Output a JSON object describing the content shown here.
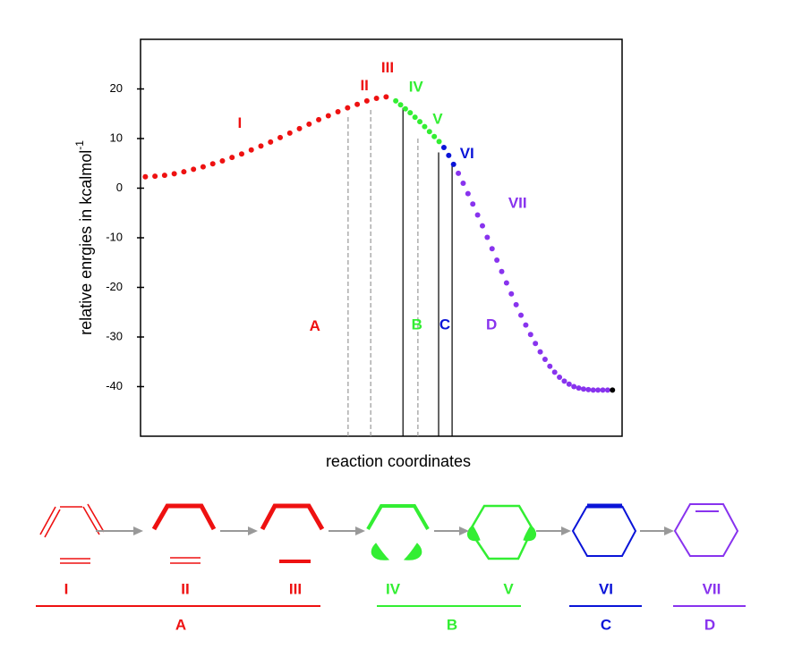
{
  "chart_data": {
    "type": "scatter",
    "xlabel": "reaction coordinates",
    "ylabel": "relative enrgies in kcalmol",
    "ylabel_sup": "-1",
    "xlim": [
      0,
      100
    ],
    "ylim": [
      -50,
      30
    ],
    "yticks": [
      20,
      10,
      0,
      -10,
      -20,
      -30,
      -40
    ],
    "series": [
      {
        "color": "#ee1111",
        "x": [
          1,
          3,
          5,
          7,
          9,
          11,
          13,
          15,
          17,
          19,
          21,
          23,
          25,
          27,
          29,
          31,
          33,
          35,
          37,
          39,
          41,
          43,
          45,
          47,
          49,
          51
        ],
        "values": [
          2.3,
          2.4,
          2.6,
          2.9,
          3.3,
          3.8,
          4.3,
          4.9,
          5.5,
          6.2,
          6.9,
          7.7,
          8.5,
          9.3,
          10.2,
          11.1,
          12.0,
          12.9,
          13.8,
          14.6,
          15.4,
          16.2,
          16.9,
          17.6,
          18.1,
          18.4
        ]
      },
      {
        "color": "#33ee33",
        "x": [
          53,
          54,
          55,
          56,
          57,
          58,
          59,
          60,
          61,
          62
        ],
        "values": [
          17.6,
          16.8,
          16.0,
          15.2,
          14.3,
          13.4,
          12.4,
          11.4,
          10.4,
          9.4
        ]
      },
      {
        "color": "#0a14d8",
        "x": [
          63,
          64,
          65
        ],
        "values": [
          8.2,
          6.6,
          4.8
        ]
      },
      {
        "color": "#8833ee",
        "x": [
          66,
          67,
          68,
          69,
          70,
          71,
          72,
          73,
          74,
          75,
          76,
          77,
          78,
          79,
          80,
          81,
          82,
          83,
          84,
          85,
          86,
          87,
          88,
          89,
          90,
          91,
          92,
          93,
          94,
          95,
          96,
          97
        ],
        "values": [
          3.0,
          1.0,
          -1.1,
          -3.2,
          -5.4,
          -7.6,
          -9.9,
          -12.2,
          -14.5,
          -16.8,
          -19.1,
          -21.3,
          -23.5,
          -25.6,
          -27.6,
          -29.5,
          -31.3,
          -33.0,
          -34.5,
          -35.9,
          -37.1,
          -38.1,
          -38.9,
          -39.5,
          -40.0,
          -40.3,
          -40.5,
          -40.6,
          -40.7,
          -40.7,
          -40.7,
          -40.7
        ]
      },
      {
        "color": "#000000",
        "x": [
          98
        ],
        "values": [
          -40.7
        ]
      }
    ],
    "dividers": [
      {
        "x": 43.1,
        "y": 14.4,
        "dashed": true
      },
      {
        "x": 47.8,
        "y": 16.2,
        "dashed": true
      },
      {
        "x": 54.5,
        "y": 16.2,
        "dashed": false
      },
      {
        "x": 57.6,
        "y": 10.4,
        "dashed": true
      },
      {
        "x": 61.9,
        "y": 7.2,
        "dashed": false
      },
      {
        "x": 64.7,
        "y": 4.5,
        "dashed": false
      }
    ],
    "annotations": [
      {
        "text": "I",
        "x": 20.6,
        "y": 13,
        "color": "#ee1111"
      },
      {
        "text": "II",
        "x": 46.5,
        "y": 20.5,
        "color": "#ee1111"
      },
      {
        "text": "III",
        "x": 51.3,
        "y": 24.1,
        "color": "#ee1111"
      },
      {
        "text": "IV",
        "x": 57.2,
        "y": 20.3,
        "color": "#33ee33"
      },
      {
        "text": "V",
        "x": 61.7,
        "y": 13.8,
        "color": "#33ee33"
      },
      {
        "text": "VI",
        "x": 67.8,
        "y": 6.8,
        "color": "#0a14d8"
      },
      {
        "text": "VII",
        "x": 78.3,
        "y": -3.2,
        "color": "#8833ee"
      },
      {
        "text": "A",
        "x": 36.2,
        "y": -27.9,
        "color": "#ee1111"
      },
      {
        "text": "B",
        "x": 57.4,
        "y": -27.7,
        "color": "#33ee33"
      },
      {
        "text": "C",
        "x": 63.2,
        "y": -27.7,
        "color": "#0a14d8"
      },
      {
        "text": "D",
        "x": 72.9,
        "y": -27.7,
        "color": "#8833ee"
      }
    ]
  },
  "diagram": {
    "stages": [
      {
        "label": "I",
        "color": "#ee1111"
      },
      {
        "label": "II",
        "color": "#ee1111"
      },
      {
        "label": "III",
        "color": "#ee1111"
      },
      {
        "label": "IV",
        "color": "#33ee33"
      },
      {
        "label": "V",
        "color": "#33ee33"
      },
      {
        "label": "VI",
        "color": "#0a14d8"
      },
      {
        "label": "VII",
        "color": "#8833ee"
      }
    ],
    "groups": [
      {
        "label": "A",
        "color": "#ee1111"
      },
      {
        "label": "B",
        "color": "#33ee33"
      },
      {
        "label": "C",
        "color": "#0a14d8"
      },
      {
        "label": "D",
        "color": "#8833ee"
      }
    ]
  }
}
